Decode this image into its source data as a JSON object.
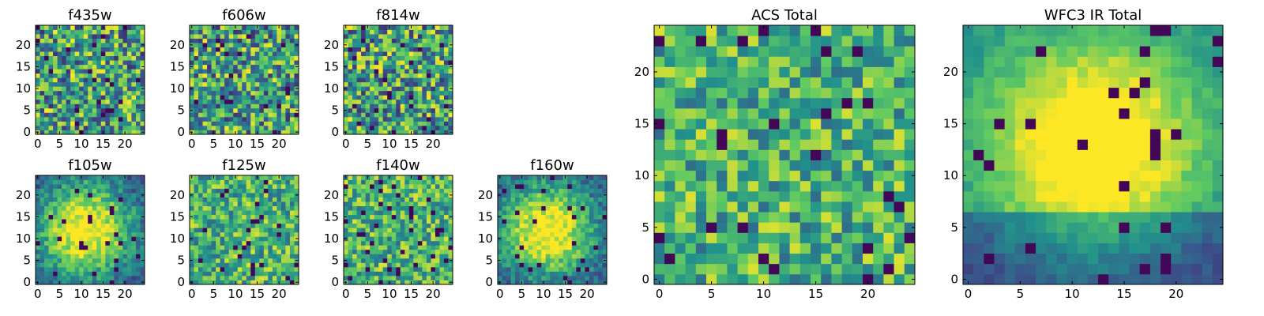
{
  "chart_data": [
    {
      "type": "heatmap",
      "title": "f435w",
      "size": 25,
      "xticks": [
        0,
        5,
        10,
        15,
        20
      ],
      "yticks": [
        0,
        5,
        10,
        15,
        20
      ],
      "colormap": "viridis",
      "pattern": "noise",
      "seed": 11
    },
    {
      "type": "heatmap",
      "title": "f606w",
      "size": 25,
      "xticks": [
        0,
        5,
        10,
        15,
        20
      ],
      "yticks": [
        0,
        5,
        10,
        15,
        20
      ],
      "colormap": "viridis",
      "pattern": "noise",
      "seed": 23
    },
    {
      "type": "heatmap",
      "title": "f814w",
      "size": 25,
      "xticks": [
        0,
        5,
        10,
        15,
        20
      ],
      "yticks": [
        0,
        5,
        10,
        15,
        20
      ],
      "colormap": "viridis",
      "pattern": "noise",
      "seed": 37
    },
    {
      "type": "heatmap",
      "title": "f105w",
      "size": 25,
      "xticks": [
        0,
        5,
        10,
        15,
        20
      ],
      "yticks": [
        0,
        5,
        10,
        15,
        20
      ],
      "colormap": "viridis",
      "pattern": "blob",
      "seed": 41
    },
    {
      "type": "heatmap",
      "title": "f125w",
      "size": 25,
      "xticks": [
        0,
        5,
        10,
        15,
        20
      ],
      "yticks": [
        0,
        5,
        10,
        15,
        20
      ],
      "colormap": "viridis",
      "pattern": "noise-light",
      "seed": 53
    },
    {
      "type": "heatmap",
      "title": "f140w",
      "size": 25,
      "xticks": [
        0,
        5,
        10,
        15,
        20
      ],
      "yticks": [
        0,
        5,
        10,
        15,
        20
      ],
      "colormap": "viridis",
      "pattern": "noise-light",
      "seed": 67
    },
    {
      "type": "heatmap",
      "title": "f160w",
      "size": 25,
      "xticks": [
        0,
        5,
        10,
        15,
        20
      ],
      "yticks": [
        0,
        5,
        10,
        15,
        20
      ],
      "colormap": "viridis",
      "pattern": "blob",
      "seed": 79
    },
    {
      "type": "heatmap",
      "title": "ACS Total",
      "size": 25,
      "xticks": [
        0,
        5,
        10,
        15,
        20
      ],
      "yticks": [
        0,
        5,
        10,
        15,
        20
      ],
      "colormap": "viridis",
      "pattern": "noise-light",
      "seed": 83
    },
    {
      "type": "heatmap",
      "title": "WFC3 IR Total",
      "size": 25,
      "xticks": [
        0,
        5,
        10,
        15,
        20
      ],
      "yticks": [
        0,
        5,
        10,
        15,
        20
      ],
      "colormap": "viridis",
      "pattern": "blob-strong",
      "seed": 97
    }
  ]
}
